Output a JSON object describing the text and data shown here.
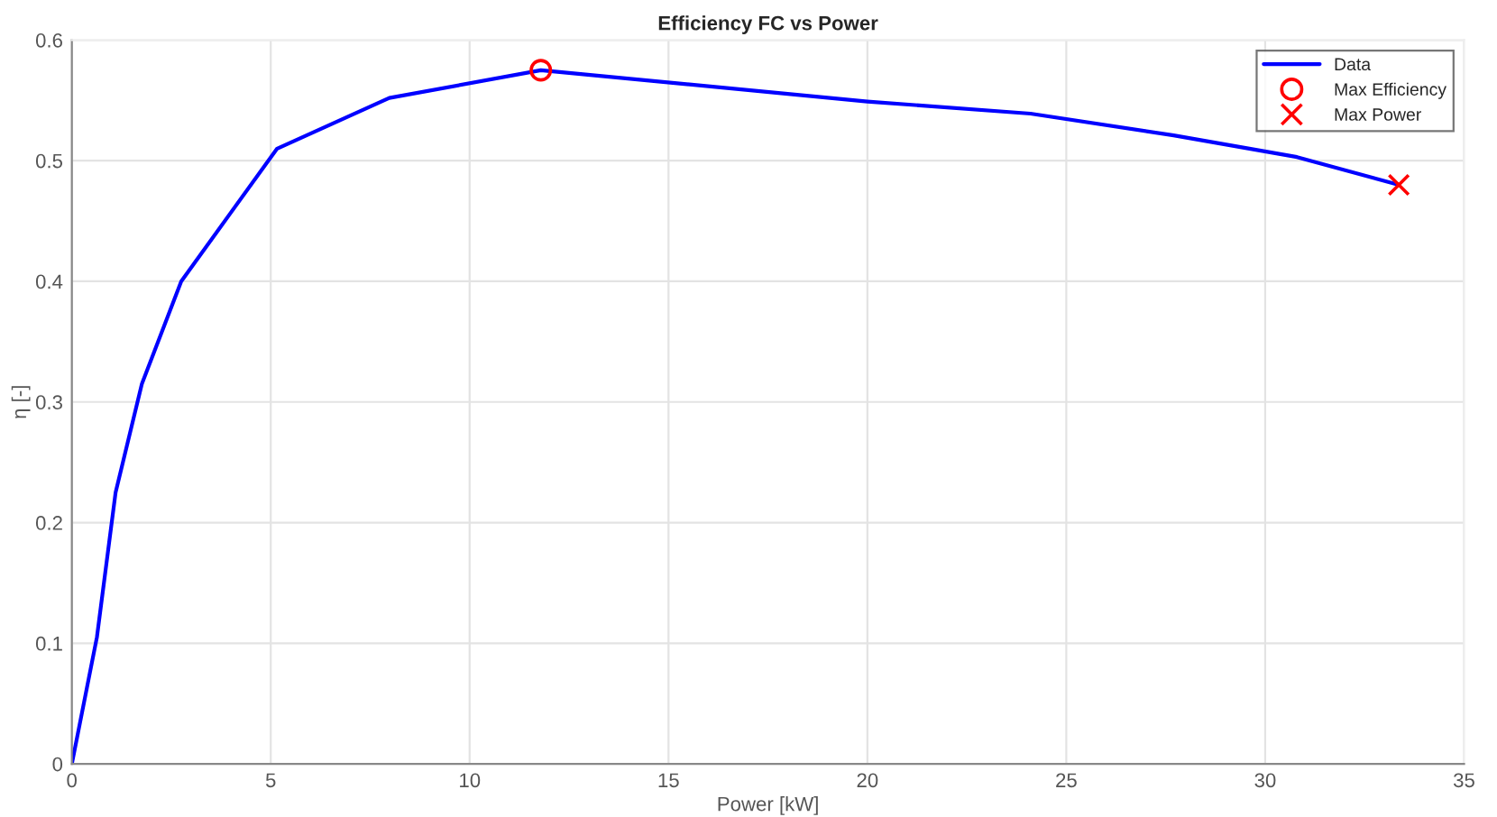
{
  "chart_data": {
    "type": "line",
    "title": "Efficiency FC vs Power",
    "xlabel": "Power [kW]",
    "ylabel": "η [-]",
    "series": [
      {
        "name": "Data",
        "color": "#0000ff",
        "marker": "none",
        "x": [
          0,
          0.63,
          1.1,
          1.76,
          2.75,
          5.16,
          7.98,
          11.79,
          20.0,
          24.1,
          27.7,
          30.8,
          33.36
        ],
        "values": [
          0,
          0.105,
          0.225,
          0.315,
          0.4,
          0.51,
          0.552,
          0.575,
          0.549,
          0.539,
          0.521,
          0.503,
          0.48
        ]
      },
      {
        "name": "Max Efficiency",
        "type": "scatter",
        "color": "#ff0000",
        "marker": "circle",
        "x": [
          11.79
        ],
        "values": [
          0.575
        ]
      },
      {
        "name": "Max Power",
        "type": "scatter",
        "color": "#ff0000",
        "marker": "cross",
        "x": [
          33.36
        ],
        "values": [
          0.48
        ]
      }
    ],
    "xlim": [
      0,
      35
    ],
    "xticks": [
      0,
      5,
      10,
      15,
      20,
      25,
      30,
      35
    ],
    "ylim": [
      0,
      0.6
    ],
    "yticks": [
      0,
      0.1,
      0.2,
      0.3,
      0.4,
      0.5,
      0.6
    ],
    "grid": true,
    "legend": "top right",
    "line_style": "solid"
  }
}
